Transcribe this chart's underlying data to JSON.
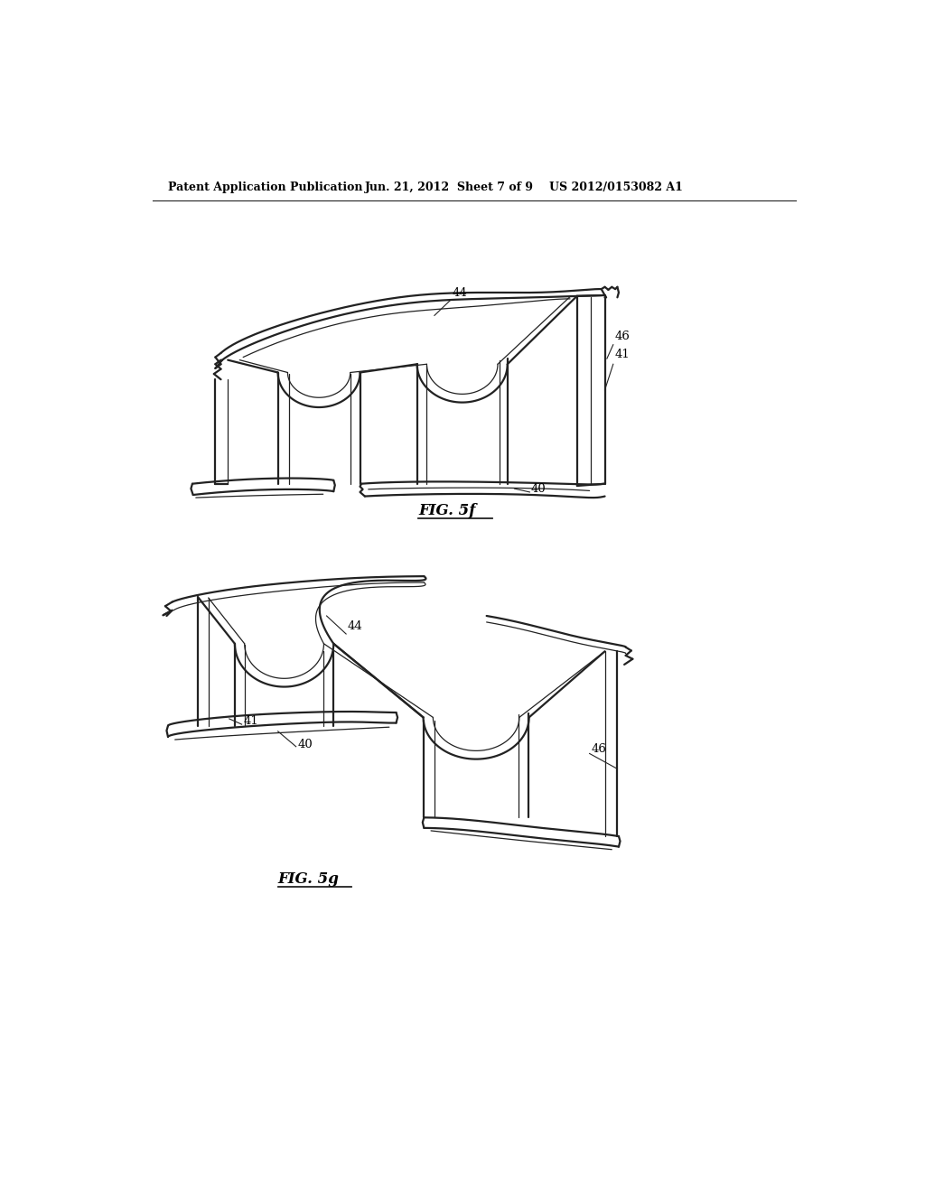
{
  "background_color": "#ffffff",
  "page_width": 10.24,
  "page_height": 13.2,
  "header_text": "Patent Application Publication",
  "header_date": "Jun. 21, 2012  Sheet 7 of 9",
  "header_patent": "US 2012/0153082 A1",
  "fig5f_label": "FIG. 5f",
  "fig5g_label": "FIG. 5g",
  "text_color": "#000000",
  "line_color": "#222222",
  "lw_main": 1.6,
  "lw_thin": 0.9
}
